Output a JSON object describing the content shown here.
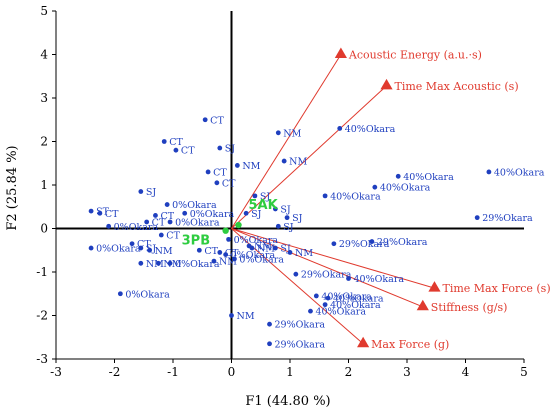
{
  "chart_data": {
    "type": "scatter",
    "xlabel": "F1 (44.80 %)",
    "ylabel": "F2 (25.84 %)",
    "xlim": [
      -3,
      5
    ],
    "ylim": [
      -3,
      5
    ],
    "xticks": [
      "-3",
      "-2",
      "-1",
      "0",
      "1",
      "2",
      "3",
      "4",
      "5"
    ],
    "yticks": [
      "-3",
      "-2",
      "-1",
      "0",
      "1",
      "2",
      "3",
      "4",
      "5"
    ],
    "grid": false,
    "colors": {
      "points": "#1f3fbf",
      "variables": "#e03a2e",
      "centers": "#2ecc40",
      "axes": "#000000"
    },
    "variables": [
      {
        "label": "Acoustic Energy (a.u.·s)",
        "x": 1.87,
        "y": 4.0
      },
      {
        "label": "Time Max Acoustic (s)",
        "x": 2.65,
        "y": 3.28
      },
      {
        "label": "Time Max Force (s)",
        "x": 3.47,
        "y": -1.37
      },
      {
        "label": "Stiffness (g/s)",
        "x": 3.27,
        "y": -1.8
      },
      {
        "label": "Max Force (g)",
        "x": 2.25,
        "y": -2.65
      }
    ],
    "centers": [
      {
        "label": "5AK",
        "x": 0.12,
        "y": 0.08
      },
      {
        "label": "3PB",
        "x": -0.1,
        "y": -0.05
      }
    ],
    "points": [
      {
        "label": "CT",
        "x": -0.45,
        "y": 2.5
      },
      {
        "label": "CT",
        "x": -1.15,
        "y": 2.0
      },
      {
        "label": "CT",
        "x": -0.95,
        "y": 1.8
      },
      {
        "label": "CT",
        "x": -0.4,
        "y": 1.3
      },
      {
        "label": "CT",
        "x": -0.25,
        "y": 1.05
      },
      {
        "label": "SJ",
        "x": -0.2,
        "y": 1.85
      },
      {
        "label": "NM",
        "x": 0.8,
        "y": 2.2
      },
      {
        "label": "NM",
        "x": 0.1,
        "y": 1.45
      },
      {
        "label": "NM",
        "x": 0.9,
        "y": 1.55
      },
      {
        "label": "SJ",
        "x": 0.4,
        "y": 0.75
      },
      {
        "label": "SJ",
        "x": 0.25,
        "y": 0.35
      },
      {
        "label": "SJ",
        "x": 0.75,
        "y": 0.45
      },
      {
        "label": "SJ",
        "x": 0.95,
        "y": 0.25
      },
      {
        "label": "SJ",
        "x": 0.8,
        "y": 0.05
      },
      {
        "label": "40%Okara",
        "x": 1.85,
        "y": 2.3
      },
      {
        "label": "40%Okara",
        "x": 1.6,
        "y": 0.75
      },
      {
        "label": "40%Okara",
        "x": 2.45,
        "y": 0.95
      },
      {
        "label": "40%Okara",
        "x": 2.85,
        "y": 1.2
      },
      {
        "label": "40%Okara",
        "x": 4.4,
        "y": 1.3
      },
      {
        "label": "29%Okara",
        "x": 4.2,
        "y": 0.25
      },
      {
        "label": "SJ",
        "x": -1.55,
        "y": 0.85
      },
      {
        "label": "0%Okara",
        "x": -1.1,
        "y": 0.55
      },
      {
        "label": "0%Okara",
        "x": -0.8,
        "y": 0.35
      },
      {
        "label": "CT",
        "x": -1.3,
        "y": 0.3
      },
      {
        "label": "CT",
        "x": -1.45,
        "y": 0.15
      },
      {
        "label": "0%Okara",
        "x": -1.05,
        "y": 0.15
      },
      {
        "label": "0%Okara",
        "x": -2.1,
        "y": 0.05
      },
      {
        "label": "ST",
        "x": -2.4,
        "y": 0.4
      },
      {
        "label": "CT",
        "x": -2.25,
        "y": 0.35
      },
      {
        "label": "CT",
        "x": -1.2,
        "y": -0.15
      },
      {
        "label": "CT",
        "x": -1.7,
        "y": -0.35
      },
      {
        "label": "SJ",
        "x": -1.55,
        "y": -0.45
      },
      {
        "label": "NM",
        "x": -1.4,
        "y": -0.5
      },
      {
        "label": "NM",
        "x": -1.25,
        "y": -0.8
      },
      {
        "label": "NM",
        "x": -1.55,
        "y": -0.8
      },
      {
        "label": "0%Okara",
        "x": -2.4,
        "y": -0.45
      },
      {
        "label": "0%Okara",
        "x": -1.05,
        "y": -0.8
      },
      {
        "label": "0%Okara",
        "x": -1.9,
        "y": -1.5
      },
      {
        "label": "CT",
        "x": -0.55,
        "y": -0.5
      },
      {
        "label": "CT",
        "x": -0.2,
        "y": -0.55
      },
      {
        "label": "NM",
        "x": -0.3,
        "y": -0.75
      },
      {
        "label": "0%Okara",
        "x": -0.05,
        "y": -0.25
      },
      {
        "label": "0%Okara",
        "x": -0.1,
        "y": -0.6
      },
      {
        "label": "0%Okara",
        "x": 0.05,
        "y": -0.7
      },
      {
        "label": "NM",
        "x": 0.3,
        "y": -0.4
      },
      {
        "label": "NM",
        "x": 0.35,
        "y": -0.45
      },
      {
        "label": "SJ",
        "x": 0.75,
        "y": -0.45
      },
      {
        "label": "NM",
        "x": 1.0,
        "y": -0.55
      },
      {
        "label": "NM",
        "x": 0.0,
        "y": -2.0
      },
      {
        "label": "29%Okara",
        "x": 1.75,
        "y": -0.35
      },
      {
        "label": "29%Okara",
        "x": 2.4,
        "y": -0.3
      },
      {
        "label": "29%Okara",
        "x": 1.1,
        "y": -1.05
      },
      {
        "label": "40%Okara",
        "x": 2.0,
        "y": -1.15
      },
      {
        "label": "40%Okara",
        "x": 1.45,
        "y": -1.55
      },
      {
        "label": "40%Okara",
        "x": 1.65,
        "y": -1.6
      },
      {
        "label": "40%Okara",
        "x": 1.6,
        "y": -1.75
      },
      {
        "label": "40%Okara",
        "x": 1.35,
        "y": -1.9
      },
      {
        "label": "29%Okara",
        "x": 0.65,
        "y": -2.2
      },
      {
        "label": "29%Okara",
        "x": 0.65,
        "y": -2.65
      }
    ]
  }
}
